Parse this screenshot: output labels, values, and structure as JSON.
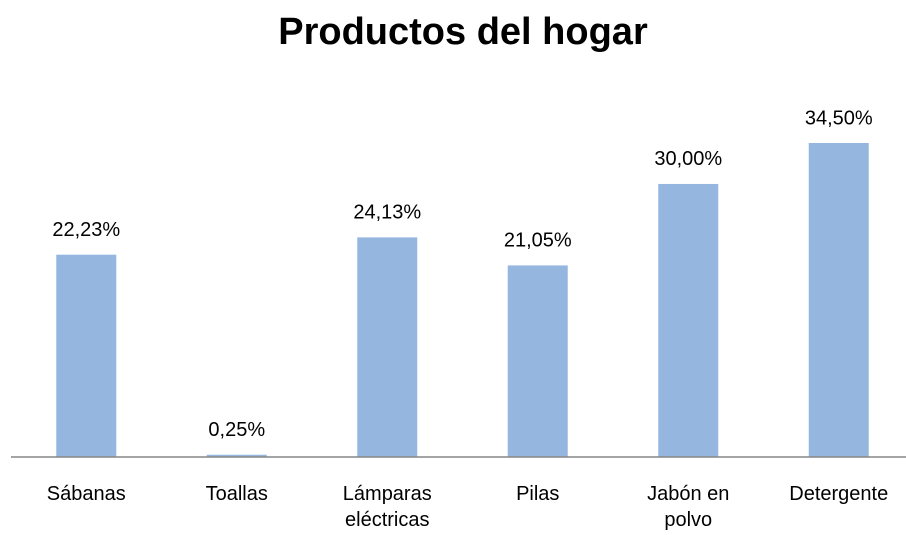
{
  "chart_data": {
    "type": "bar",
    "title": "Productos del hogar",
    "categories": [
      "Sábanas",
      "Toallas",
      "Lámparas eléctricas",
      "Pilas",
      "Jabón en polvo",
      "Detergente"
    ],
    "values": [
      22.23,
      0.25,
      24.13,
      21.05,
      30.0,
      34.5
    ],
    "value_labels": [
      "22,23%",
      "0,25%",
      "24,13%",
      "21,05%",
      "30,00%",
      "34,50%"
    ],
    "color": "#95b7df"
  }
}
